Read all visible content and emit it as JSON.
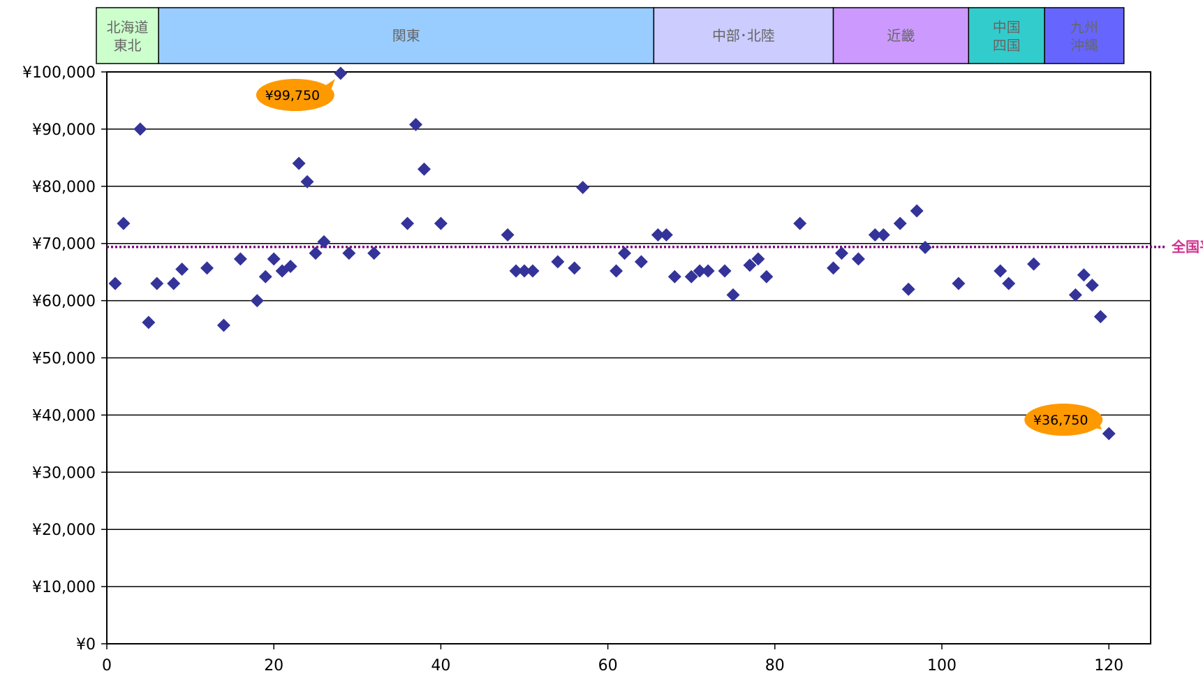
{
  "chart_data": {
    "type": "scatter",
    "title": "",
    "xlabel": "",
    "ylabel": "",
    "xlim": [
      0,
      125
    ],
    "ylim": [
      0,
      100000
    ],
    "x_ticks": [
      0,
      20,
      40,
      60,
      80,
      100,
      120
    ],
    "x_tick_labels": [
      "0",
      "20",
      "40",
      "60",
      "80",
      "100",
      "120"
    ],
    "y_ticks": [
      0,
      10000,
      20000,
      30000,
      40000,
      50000,
      60000,
      70000,
      80000,
      90000,
      100000
    ],
    "y_tick_labels": [
      "¥0",
      "¥10,000",
      "¥20,000",
      "¥30,000",
      "¥40,000",
      "¥50,000",
      "¥60,000",
      "¥70,000",
      "¥80,000",
      "¥90,000",
      "¥100,000"
    ],
    "grid": true,
    "marker_color": "#333399",
    "points": [
      [
        1,
        63000
      ],
      [
        2,
        73500
      ],
      [
        4,
        90000
      ],
      [
        5,
        56200
      ],
      [
        6,
        63000
      ],
      [
        8,
        63000
      ],
      [
        9,
        65500
      ],
      [
        12,
        65700
      ],
      [
        14,
        55700
      ],
      [
        16,
        67300
      ],
      [
        18,
        60000
      ],
      [
        19,
        64200
      ],
      [
        20,
        67300
      ],
      [
        21,
        65200
      ],
      [
        22,
        66000
      ],
      [
        23,
        84000
      ],
      [
        24,
        80800
      ],
      [
        25,
        68300
      ],
      [
        26,
        70300
      ],
      [
        28,
        99750
      ],
      [
        29,
        68300
      ],
      [
        32,
        68300
      ],
      [
        36,
        73500
      ],
      [
        37,
        90800
      ],
      [
        38,
        83000
      ],
      [
        40,
        73500
      ],
      [
        48,
        71500
      ],
      [
        49,
        65200
      ],
      [
        50,
        65200
      ],
      [
        51,
        65200
      ],
      [
        54,
        66800
      ],
      [
        56,
        65700
      ],
      [
        57,
        79800
      ],
      [
        61,
        65200
      ],
      [
        62,
        68300
      ],
      [
        64,
        66800
      ],
      [
        66,
        71500
      ],
      [
        67,
        71500
      ],
      [
        68,
        64200
      ],
      [
        70,
        64200
      ],
      [
        71,
        65200
      ],
      [
        72,
        65200
      ],
      [
        74,
        65200
      ],
      [
        75,
        61000
      ],
      [
        77,
        66200
      ],
      [
        78,
        67300
      ],
      [
        79,
        64200
      ],
      [
        83,
        73500
      ],
      [
        87,
        65700
      ],
      [
        88,
        68300
      ],
      [
        90,
        67300
      ],
      [
        92,
        71500
      ],
      [
        93,
        71500
      ],
      [
        95,
        73500
      ],
      [
        96,
        62000
      ],
      [
        97,
        75700
      ],
      [
        98,
        69300
      ],
      [
        102,
        63000
      ],
      [
        107,
        65200
      ],
      [
        108,
        63000
      ],
      [
        111,
        66400
      ],
      [
        116,
        61000
      ],
      [
        117,
        64500
      ],
      [
        118,
        62700
      ],
      [
        119,
        57200
      ],
      [
        120,
        36750
      ]
    ],
    "national_average": {
      "value": 69400,
      "label": "全国平均",
      "color": "#800080",
      "label_color": "#d0338f"
    },
    "regions": [
      {
        "label": "北海道\n東北",
        "x_start": 0,
        "x_end": 6.2,
        "color": "#ccffcc"
      },
      {
        "label": "関東",
        "x_start": 6.2,
        "x_end": 65.5,
        "color": "#99ccff"
      },
      {
        "label": "中部･北陸",
        "x_start": 65.5,
        "x_end": 87,
        "color": "#ccccff"
      },
      {
        "label": "近畿",
        "x_start": 87,
        "x_end": 103.2,
        "color": "#cc99ff"
      },
      {
        "label": "中国\n四国",
        "x_start": 103.2,
        "x_end": 112.3,
        "color": "#33cccc"
      },
      {
        "label": "九州\n沖縄",
        "x_start": 112.3,
        "x_end": 121.8,
        "color": "#6666ff"
      }
    ],
    "annotations": [
      {
        "text": "¥99,750",
        "x": 28,
        "y": 99750,
        "color": "#ff9900"
      },
      {
        "text": "¥36,750",
        "x": 120,
        "y": 36750,
        "color": "#ff9900"
      }
    ]
  }
}
